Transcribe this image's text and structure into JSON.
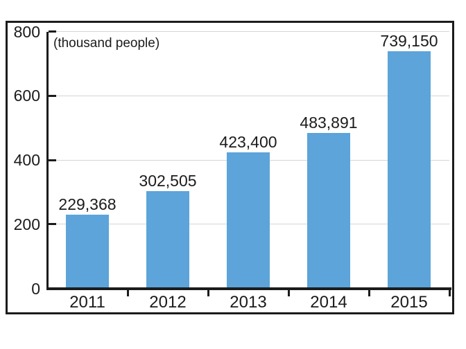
{
  "chart_data": {
    "type": "bar",
    "title": "",
    "unit_label": "(thousand people)",
    "categories": [
      "2011",
      "2012",
      "2013",
      "2014",
      "2015"
    ],
    "values": [
      229368,
      302505,
      423400,
      483891,
      739150
    ],
    "value_labels": [
      "229,368",
      "302,505",
      "423,400",
      "483,891",
      "739,150"
    ],
    "xlabel": "",
    "ylabel": "",
    "y_axis": {
      "min": 0,
      "max": 800,
      "ticks": [
        0,
        200,
        400,
        600,
        800
      ],
      "tick_labels": [
        "0",
        "200",
        "400",
        "600",
        "800"
      ],
      "unit_scale": 1000
    },
    "grid": true,
    "legend_position": "none",
    "colors": {
      "bar": "#5ca4d9",
      "grid": "#d5d5d5",
      "axis": "#1b1b1b",
      "text": "#1b1b1b",
      "background": "#ffffff",
      "frame_border": "#1b1b1b"
    }
  }
}
